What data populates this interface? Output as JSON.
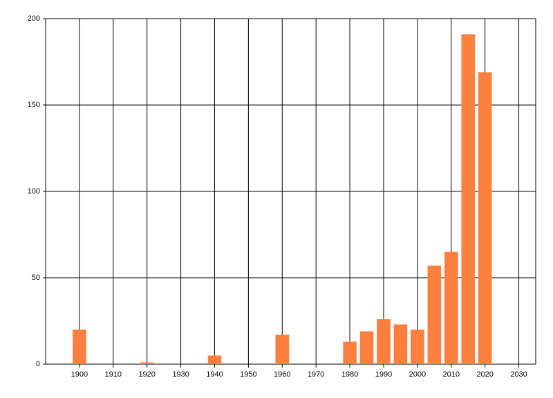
{
  "chart_data": {
    "type": "bar",
    "x": [
      1900,
      1920,
      1940,
      1960,
      1980,
      1985,
      1990,
      1995,
      2000,
      2005,
      2010,
      2015,
      2020
    ],
    "values": [
      20,
      1,
      5,
      17,
      13,
      19,
      26,
      23,
      20,
      57,
      65,
      191,
      169
    ],
    "color": "#ff7f3f",
    "xlim": [
      1890,
      2035
    ],
    "xticks": [
      1900,
      1910,
      1920,
      1930,
      1940,
      1950,
      1960,
      1970,
      1980,
      1990,
      2000,
      2010,
      2020,
      2030
    ],
    "ylim": [
      0,
      200
    ],
    "yticks": [
      0,
      50,
      100,
      150,
      200
    ],
    "grid": true
  }
}
